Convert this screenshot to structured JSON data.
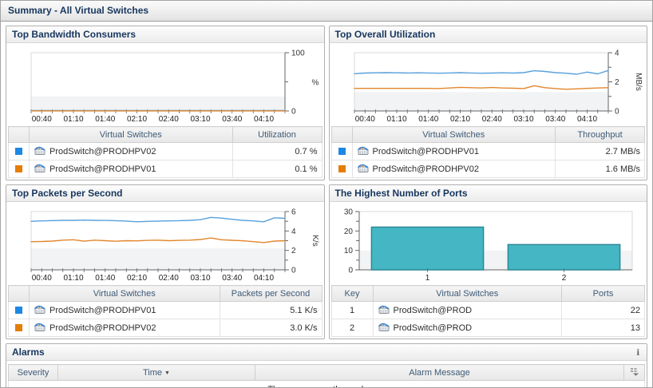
{
  "window_title": "Summary - All Virtual Switches",
  "panels": {
    "bandwidth": {
      "title": "Top Bandwidth Consumers",
      "table": {
        "col_widths": [
          "26px",
          "",
          "112px"
        ],
        "headers": [
          "",
          "Virtual Switches",
          "Utilization"
        ],
        "rows": [
          {
            "cells": [
              {
                "type": "swatch",
                "color": "#1d87e4"
              },
              {
                "type": "switch",
                "text": "ProdSwitch@PRODHPV02"
              },
              {
                "type": "value",
                "text": "0.7 %"
              }
            ]
          },
          {
            "cells": [
              {
                "type": "swatch",
                "color": "#e57d00"
              },
              {
                "type": "switch",
                "text": "ProdSwitch@PRODHPV01"
              },
              {
                "type": "value",
                "text": "0.1 %"
              }
            ]
          }
        ]
      }
    },
    "utilization": {
      "title": "Top Overall Utilization",
      "table": {
        "col_widths": [
          "26px",
          "",
          "112px"
        ],
        "headers": [
          "",
          "Virtual Switches",
          "Throughput"
        ],
        "rows": [
          {
            "cells": [
              {
                "type": "swatch",
                "color": "#1d87e4"
              },
              {
                "type": "switch",
                "text": "ProdSwitch@PRODHPV01"
              },
              {
                "type": "value",
                "text": "2.7 MB/s"
              }
            ]
          },
          {
            "cells": [
              {
                "type": "swatch",
                "color": "#e57d00"
              },
              {
                "type": "switch",
                "text": "ProdSwitch@PRODHPV02"
              },
              {
                "type": "value",
                "text": "1.6 MB/s"
              }
            ]
          }
        ]
      }
    },
    "packets": {
      "title": "Top Packets per Second",
      "table": {
        "col_widths": [
          "26px",
          "",
          "128px"
        ],
        "headers": [
          "",
          "Virtual Switches",
          "Packets per Second"
        ],
        "rows": [
          {
            "cells": [
              {
                "type": "swatch",
                "color": "#1d87e4"
              },
              {
                "type": "switch",
                "text": "ProdSwitch@PRODHPV01"
              },
              {
                "type": "value",
                "text": "5.1 K/s"
              }
            ]
          },
          {
            "cells": [
              {
                "type": "swatch",
                "color": "#e57d00"
              },
              {
                "type": "switch",
                "text": "ProdSwitch@PRODHPV02"
              },
              {
                "type": "value",
                "text": "3.0 K/s"
              }
            ]
          }
        ]
      }
    },
    "ports": {
      "title": "The Highest Number of Ports",
      "table": {
        "col_widths": [
          "52px",
          "",
          "104px"
        ],
        "headers": [
          "Key",
          "Virtual Switches",
          "Ports"
        ],
        "rows": [
          {
            "cells": [
              {
                "type": "text",
                "text": "1"
              },
              {
                "type": "switch",
                "text": "ProdSwitch@PROD"
              },
              {
                "type": "value",
                "text": "22"
              }
            ]
          },
          {
            "cells": [
              {
                "type": "text",
                "text": "2"
              },
              {
                "type": "switch",
                "text": "ProdSwitch@PROD"
              },
              {
                "type": "value",
                "text": "13"
              }
            ]
          }
        ]
      }
    }
  },
  "alarms": {
    "title": "Alarms",
    "info_icon": "i",
    "columns": {
      "severity": "Severity",
      "time": "Time",
      "message": "Alarm Message"
    },
    "empty_message": "There are currently no alarms."
  },
  "chart_data": [
    {
      "type": "line",
      "title": "Top Bandwidth Consumers",
      "ylabel": "%",
      "ylabel_rotated": false,
      "ylim": [
        0,
        100
      ],
      "yticks": [
        0,
        50,
        100
      ],
      "ytick_labels": [
        "0",
        "",
        "100"
      ],
      "band_max": 25,
      "x_tick_count": 25,
      "x_labels": [
        "00:40",
        "01:10",
        "01:40",
        "02:10",
        "02:40",
        "03:10",
        "03:40",
        "04:10"
      ],
      "x_label_positions": [
        1,
        4,
        7,
        10,
        13,
        16,
        19,
        22
      ],
      "series": [
        {
          "name": "ProdSwitch@PRODHPV02",
          "color": "#59a0dc",
          "values": [
            0.7,
            0.7
          ]
        },
        {
          "name": "ProdSwitch@PRODHPV01",
          "color": "#e2862c",
          "values": [
            0.1,
            0.1
          ]
        }
      ]
    },
    {
      "type": "line",
      "title": "Top Overall Utilization",
      "ylabel": "MB/s",
      "ylabel_rotated": true,
      "ylim": [
        0,
        4
      ],
      "yticks": [
        0,
        1,
        2,
        3,
        4
      ],
      "ytick_labels": [
        "0",
        "",
        "2",
        "",
        "4"
      ],
      "band_max": 1.3,
      "x_tick_count": 25,
      "x_labels": [
        "00:40",
        "01:10",
        "01:40",
        "02:10",
        "02:40",
        "03:10",
        "03:40",
        "04:10"
      ],
      "x_label_positions": [
        1,
        4,
        7,
        10,
        13,
        16,
        19,
        22
      ],
      "series": [
        {
          "name": "ProdSwitch@PRODHPV01",
          "color": "#59a0dc",
          "values": [
            2.56,
            2.6,
            2.62,
            2.63,
            2.62,
            2.61,
            2.62,
            2.61,
            2.59,
            2.61,
            2.63,
            2.61,
            2.59,
            2.6,
            2.62,
            2.6,
            2.63,
            2.76,
            2.71,
            2.63,
            2.59,
            2.52,
            2.67,
            2.55,
            2.78
          ]
        },
        {
          "name": "ProdSwitch@PRODHPV02",
          "color": "#e2862c",
          "values": [
            1.55,
            1.55,
            1.55,
            1.55,
            1.55,
            1.55,
            1.55,
            1.55,
            1.54,
            1.58,
            1.62,
            1.6,
            1.58,
            1.61,
            1.58,
            1.56,
            1.54,
            1.73,
            1.6,
            1.54,
            1.49,
            1.52,
            1.55,
            1.58,
            1.6
          ]
        }
      ]
    },
    {
      "type": "line",
      "title": "Top Packets per Second",
      "ylabel": "K/s",
      "ylabel_rotated": true,
      "ylim": [
        0,
        6
      ],
      "yticks": [
        0,
        1,
        2,
        3,
        4,
        5,
        6
      ],
      "ytick_labels": [
        "0",
        "",
        "2",
        "",
        "4",
        "",
        "6"
      ],
      "band_max": 2.2,
      "x_tick_count": 25,
      "x_labels": [
        "00:40",
        "01:10",
        "01:40",
        "02:10",
        "02:40",
        "03:10",
        "03:40",
        "04:10"
      ],
      "x_label_positions": [
        1,
        4,
        7,
        10,
        13,
        16,
        19,
        22
      ],
      "series": [
        {
          "name": "ProdSwitch@PRODHPV01",
          "color": "#59a0dc",
          "values": [
            5.0,
            5.04,
            5.07,
            5.1,
            5.1,
            5.12,
            5.1,
            5.09,
            5.06,
            5.02,
            4.95,
            4.99,
            5.02,
            5.04,
            5.06,
            5.1,
            5.16,
            5.4,
            5.33,
            5.2,
            5.1,
            5.04,
            4.95,
            5.36,
            5.3
          ]
        },
        {
          "name": "ProdSwitch@PRODHPV02",
          "color": "#e2862c",
          "values": [
            2.9,
            2.92,
            2.96,
            3.06,
            3.1,
            2.95,
            3.06,
            3.0,
            2.94,
            3.0,
            2.98,
            3.03,
            3.06,
            3.0,
            3.03,
            3.06,
            3.12,
            3.28,
            3.1,
            3.04,
            2.99,
            2.9,
            2.81,
            2.96,
            3.0
          ]
        }
      ]
    },
    {
      "type": "bar",
      "title": "The Highest Number of Ports",
      "ylim": [
        0,
        30
      ],
      "yticks": [
        0,
        5,
        10,
        15,
        20,
        25,
        30
      ],
      "ytick_labels": [
        "0",
        "",
        "10",
        "",
        "20",
        "",
        "30"
      ],
      "band_max": 10,
      "categories": [
        "1",
        "2"
      ],
      "values": [
        22,
        13
      ],
      "bar_color": "#45b7c4",
      "bar_border": "#2d8795"
    }
  ]
}
